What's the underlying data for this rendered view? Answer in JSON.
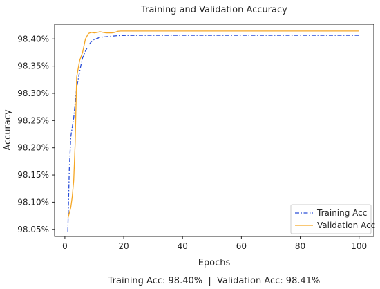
{
  "chart_data": {
    "type": "line",
    "title": "Training and Validation Accuracy",
    "xlabel": "Epochs",
    "ylabel": "Accuracy",
    "xlim": [
      -3.5,
      105
    ],
    "ylim": [
      98.037,
      98.427
    ],
    "x_ticks": [
      0,
      20,
      40,
      60,
      80,
      100
    ],
    "y_ticks": [
      98.05,
      98.1,
      98.15,
      98.2,
      98.25,
      98.3,
      98.35,
      98.4
    ],
    "y_tick_format": "percent_2dp",
    "grid": false,
    "legend_position": "lower-right",
    "series": [
      {
        "name": "Training Acc",
        "color": "#2b4fd8",
        "style": "dashdot",
        "x": [
          1,
          1.5,
          2,
          3,
          4,
          5,
          6,
          7,
          8,
          9,
          10,
          11,
          12,
          14,
          16,
          18,
          20,
          25,
          30,
          40,
          60,
          80,
          100
        ],
        "y": [
          98.046,
          98.16,
          98.22,
          98.255,
          98.31,
          98.34,
          98.365,
          98.378,
          98.388,
          98.395,
          98.399,
          98.401,
          98.403,
          98.404,
          98.405,
          98.406,
          98.4063,
          98.4065,
          98.4066,
          98.4066,
          98.4066,
          98.4066,
          98.4066
        ]
      },
      {
        "name": "Validation Acc",
        "color": "#f5a623",
        "style": "solid",
        "x": [
          1,
          1.5,
          2,
          2.5,
          3,
          3.5,
          4,
          5,
          6,
          7,
          8,
          9,
          10,
          11,
          12,
          13,
          14,
          15,
          16,
          17,
          18,
          19,
          20,
          25,
          30,
          40,
          60,
          80,
          100
        ],
        "y": [
          98.07,
          98.08,
          98.09,
          98.11,
          98.14,
          98.21,
          98.33,
          98.36,
          98.375,
          98.4,
          98.41,
          98.412,
          98.411,
          98.412,
          98.413,
          98.412,
          98.411,
          98.411,
          98.411,
          98.412,
          98.414,
          98.4145,
          98.4145,
          98.4145,
          98.4145,
          98.4145,
          98.4145,
          98.4145,
          98.4145
        ]
      }
    ],
    "footer": "Training Acc: 98.40%  |  Validation Acc: 98.41%"
  }
}
